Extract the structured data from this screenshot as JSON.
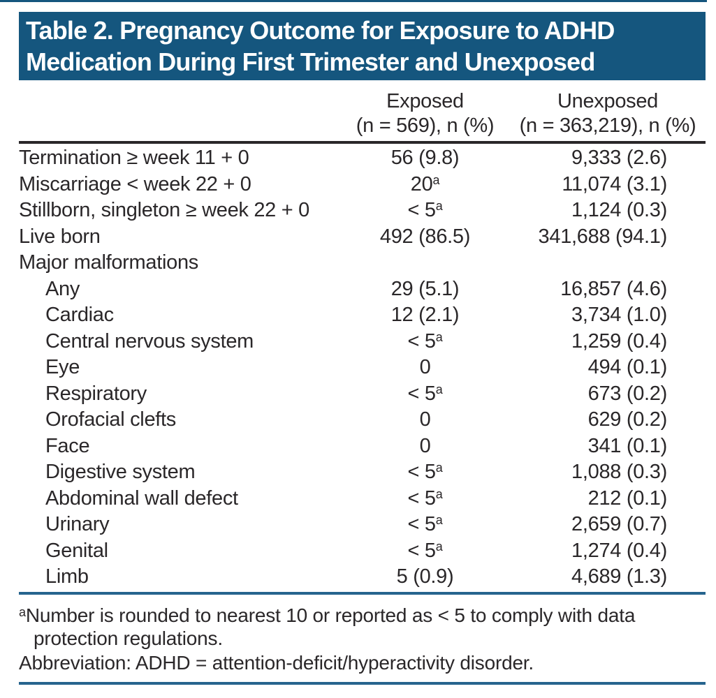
{
  "header": {
    "title_lines": [
      "Table 2. Pregnancy Outcome for Exposure to ADHD",
      "Medication During First Trimester and Unexposed"
    ]
  },
  "columns": [
    {
      "label": "Exposed",
      "sub": "(n = 569), n (%)"
    },
    {
      "label": "Unexposed",
      "sub": "(n = 363,219), n (%)"
    }
  ],
  "rows": [
    {
      "label": "Termination ≥ week 11 + 0",
      "indent": 0,
      "exposed": "56 (9.8)",
      "exposed_sup": "",
      "unexposed": "9,333 (2.6)"
    },
    {
      "label": "Miscarriage < week 22 + 0",
      "indent": 0,
      "exposed": "20",
      "exposed_sup": "a",
      "unexposed": "11,074 (3.1)"
    },
    {
      "label": "Stillborn, singleton ≥ week 22 + 0",
      "indent": 0,
      "exposed": "< 5",
      "exposed_sup": "a",
      "unexposed": "1,124 (0.3)"
    },
    {
      "label": "Live born",
      "indent": 0,
      "exposed": "492 (86.5)",
      "exposed_sup": "",
      "unexposed": "341,688 (94.1)"
    },
    {
      "label": "Major malformations",
      "indent": 0,
      "exposed": "",
      "exposed_sup": "",
      "unexposed": ""
    },
    {
      "label": "Any",
      "indent": 1,
      "exposed": "29 (5.1)",
      "exposed_sup": "",
      "unexposed": "16,857 (4.6)"
    },
    {
      "label": "Cardiac",
      "indent": 1,
      "exposed": "12 (2.1)",
      "exposed_sup": "",
      "unexposed": "3,734 (1.0)"
    },
    {
      "label": "Central nervous system",
      "indent": 1,
      "exposed": "< 5",
      "exposed_sup": "a",
      "unexposed": "1,259 (0.4)"
    },
    {
      "label": "Eye",
      "indent": 1,
      "exposed": "0",
      "exposed_sup": "",
      "unexposed": "494 (0.1)"
    },
    {
      "label": "Respiratory",
      "indent": 1,
      "exposed": "< 5",
      "exposed_sup": "a",
      "unexposed": "673 (0.2)"
    },
    {
      "label": "Orofacial clefts",
      "indent": 1,
      "exposed": "0",
      "exposed_sup": "",
      "unexposed": "629 (0.2)"
    },
    {
      "label": "Face",
      "indent": 1,
      "exposed": "0",
      "exposed_sup": "",
      "unexposed": "341 (0.1)"
    },
    {
      "label": "Digestive system",
      "indent": 1,
      "exposed": "< 5",
      "exposed_sup": "a",
      "unexposed": "1,088 (0.3)"
    },
    {
      "label": "Abdominal wall defect",
      "indent": 1,
      "exposed": "< 5",
      "exposed_sup": "a",
      "unexposed": "212 (0.1)"
    },
    {
      "label": "Urinary",
      "indent": 1,
      "exposed": "< 5",
      "exposed_sup": "a",
      "unexposed": "2,659 (0.7)"
    },
    {
      "label": "Genital",
      "indent": 1,
      "exposed": "< 5",
      "exposed_sup": "a",
      "unexposed": "1,274 (0.4)"
    },
    {
      "label": "Limb",
      "indent": 1,
      "exposed": "5 (0.9)",
      "exposed_sup": "",
      "unexposed": "4,689 (1.3)"
    }
  ],
  "footnotes": [
    {
      "sup": "a",
      "text": "Number is rounded to nearest 10 or reported as < 5 to comply with data protection regulations."
    },
    {
      "sup": "",
      "text": "Abbreviation: ADHD = attention-deficit/hyperactivity disorder."
    }
  ],
  "colors": {
    "header_bar": "#15567E",
    "rule_blue": "#26648E",
    "text": "#2A2729"
  }
}
